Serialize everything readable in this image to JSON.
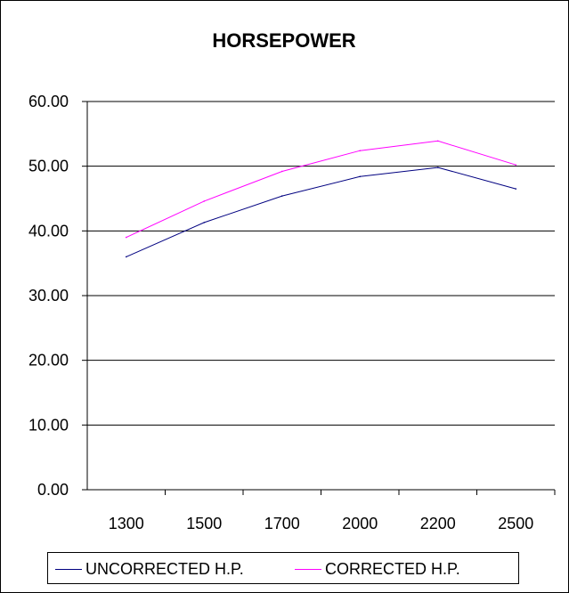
{
  "chart_data": {
    "type": "line",
    "title": "HORSEPOWER",
    "categories": [
      "1300",
      "1500",
      "1700",
      "2000",
      "2200",
      "2500"
    ],
    "ylim": [
      0,
      60
    ],
    "yticks": [
      "0.00",
      "10.00",
      "20.00",
      "30.00",
      "40.00",
      "50.00",
      "60.00"
    ],
    "grid": true,
    "legend_position": "bottom",
    "series": [
      {
        "name": "UNCORRECTED H.P.",
        "color": "#000080",
        "values": [
          36.0,
          41.3,
          45.4,
          48.4,
          49.8,
          46.5
        ]
      },
      {
        "name": "CORRECTED H.P.",
        "color": "#ff00ff",
        "values": [
          39.0,
          44.6,
          49.2,
          52.4,
          53.9,
          50.2
        ]
      }
    ]
  }
}
